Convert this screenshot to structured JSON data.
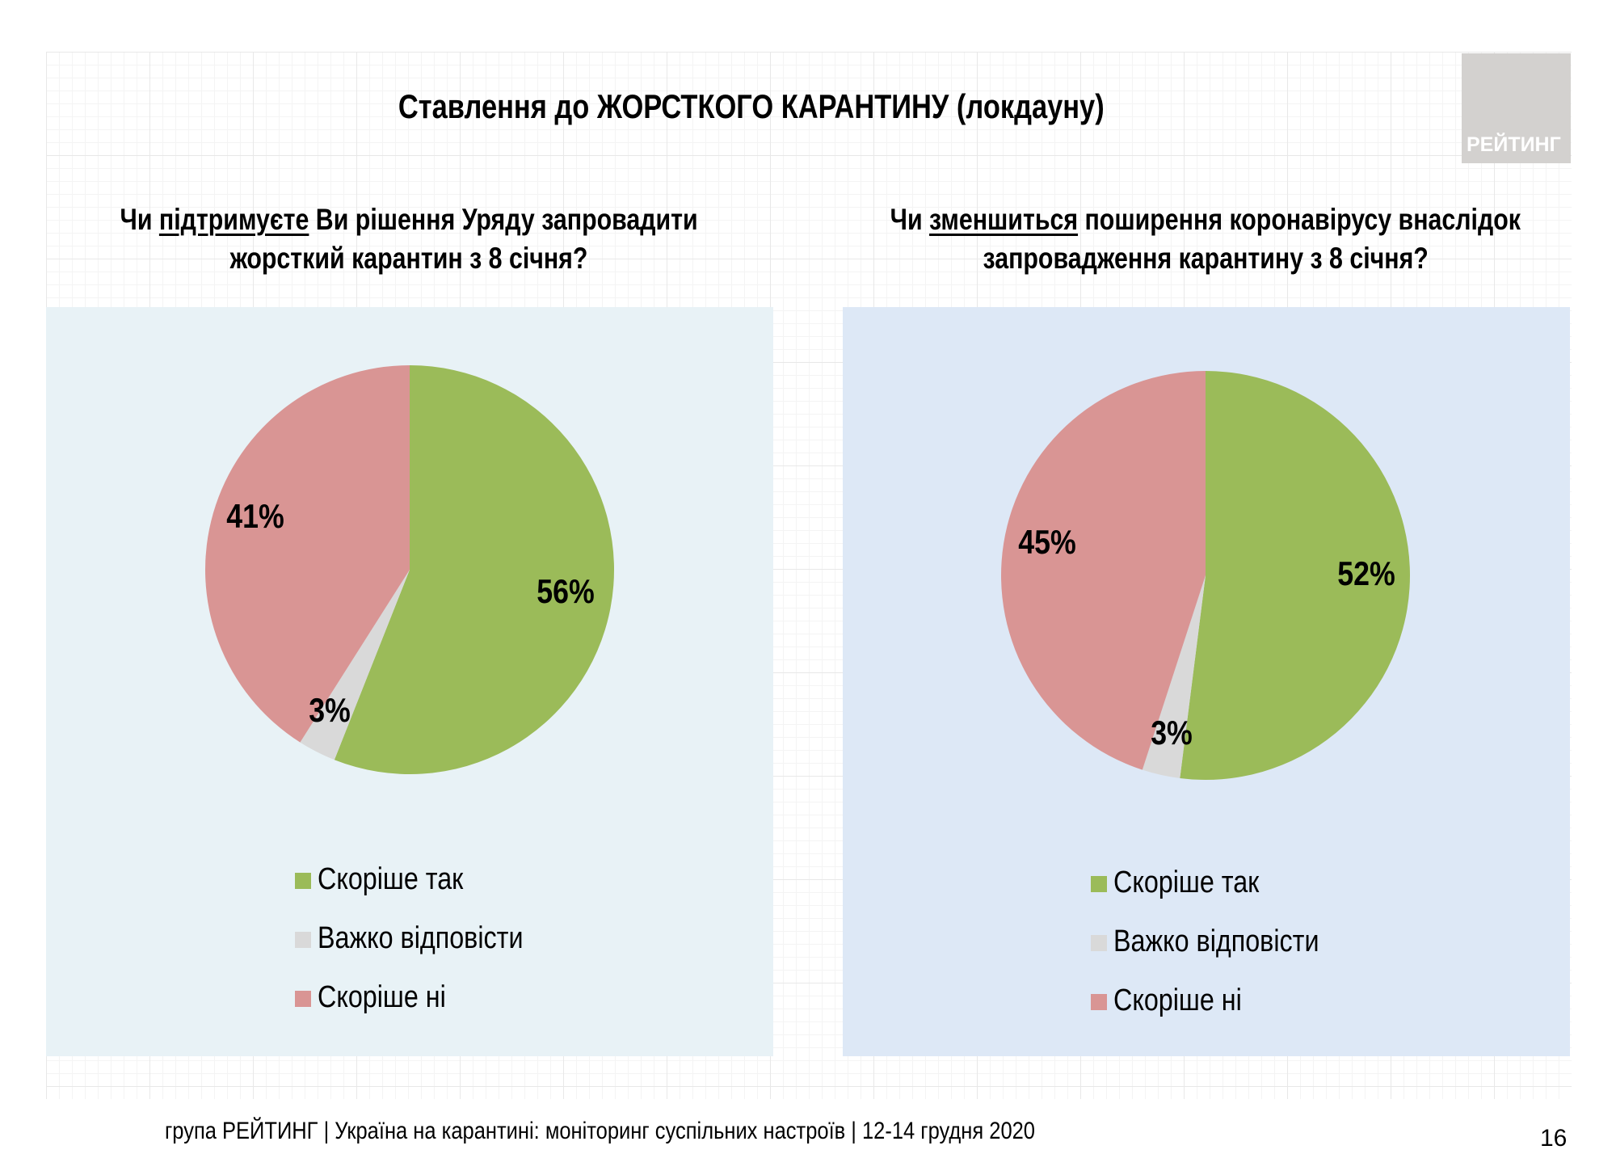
{
  "title": "Ставлення до ЖОРСТКОГО КАРАНТИНУ (локдауну)",
  "logo_text": "РЕЙТИНГ",
  "colors": {
    "yes": "#9bbb59",
    "hard": "#d9d9d9",
    "no": "#d99594",
    "panel_left": "#e8f2f6",
    "panel_right": "#dde8f6"
  },
  "legend": [
    "Скоріше так",
    "Важко відповісти",
    "Скоріше ні"
  ],
  "footer": "група РЕЙТИНГ | Україна на карантині: моніторинг суспільних настроїв | 12-14 грудня 2020",
  "page_number": "16",
  "questions": [
    {
      "pre": "Чи ",
      "underlined": "підтримуєте",
      "post": " Ви рішення Уряду запровадити",
      "line2": "жорсткий карантин з 8 січня?"
    },
    {
      "pre": "Чи ",
      "underlined": "зменшиться",
      "post": " поширення коронавірусу внаслідок",
      "line2": "запровадження карантину з 8 січня?"
    }
  ],
  "chart_data": [
    {
      "type": "pie",
      "categories": [
        "Скоріше так",
        "Важко відповісти",
        "Скоріше ні"
      ],
      "values": [
        56,
        3,
        41
      ],
      "labels": [
        "56%",
        "3%",
        "41%"
      ],
      "start": "top, clockwise",
      "legend": "bottom"
    },
    {
      "type": "pie",
      "categories": [
        "Скоріше так",
        "Важко відповісти",
        "Скоріше ні"
      ],
      "values": [
        52,
        3,
        45
      ],
      "labels": [
        "52%",
        "3%",
        "45%"
      ],
      "start": "top, clockwise",
      "legend": "bottom"
    }
  ]
}
